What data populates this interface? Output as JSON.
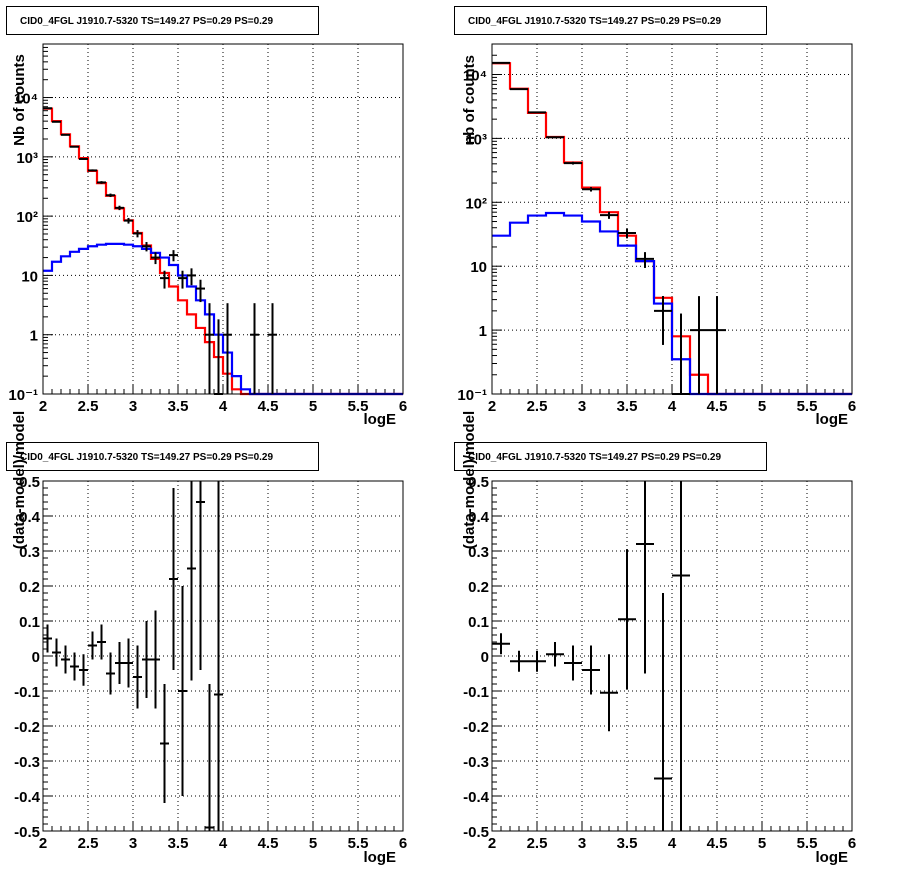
{
  "chart_data": [
    {
      "type": "histogram",
      "title": "CID0_4FGL J1910.7-5320 TS=149.27 PS=0.29 PS=0.29",
      "xlabel": "logE",
      "ylabel": "Nb of counts",
      "xlim": [
        2,
        6
      ],
      "ylim": [
        0.1,
        80000
      ],
      "yscale": "log",
      "grid": true,
      "x_ticks": [
        "2",
        "2.5",
        "3",
        "3.5",
        "4",
        "4.5",
        "5",
        "5.5",
        "6"
      ],
      "y_ticks": [
        "10⁻¹",
        "1",
        "10",
        "10²",
        "10³",
        "10⁴"
      ],
      "bin_edges": [
        2.0,
        2.1,
        2.2,
        2.3,
        2.4,
        2.5,
        2.6,
        2.7,
        2.8,
        2.9,
        3.0,
        3.1,
        3.2,
        3.3,
        3.4,
        3.5,
        3.6,
        3.7,
        3.8,
        3.9,
        4.0,
        4.1,
        4.2,
        4.3,
        4.4,
        4.5,
        4.6,
        4.7,
        4.8,
        4.9,
        5.0,
        5.1,
        5.2,
        5.3,
        5.4,
        5.5,
        5.6,
        5.7,
        5.8,
        5.9,
        6.0
      ],
      "series": [
        {
          "color": "#ff0000",
          "values": [
            6500,
            4000,
            2400,
            1500,
            950,
            580,
            360,
            220,
            135,
            85,
            52,
            32,
            19,
            11,
            6.5,
            3.8,
            2.2,
            1.3,
            0.75,
            0.42,
            0.22,
            0.12,
            0.1,
            0.1,
            0.1,
            0.1,
            0.1,
            0.1,
            0.1,
            0.1,
            0.1,
            0.1,
            0.1,
            0.1,
            0.1,
            0.1,
            0.1,
            0.1,
            0.1,
            0.1
          ]
        },
        {
          "color": "#0000ff",
          "values": [
            12,
            17,
            21,
            25,
            28,
            31,
            33,
            34,
            34,
            33,
            31,
            28,
            24,
            20,
            15,
            10,
            6.5,
            3.8,
            2.2,
            1.0,
            0.5,
            0.2,
            0.12,
            0.1,
            0.1,
            0.1,
            0.1,
            0.1,
            0.1,
            0.1,
            0.1,
            0.1,
            0.1,
            0.1,
            0.1,
            0.1,
            0.1,
            0.1,
            0.1,
            0.1
          ]
        }
      ],
      "data_points": [
        {
          "x": 2.05,
          "y": 6600
        },
        {
          "x": 2.15,
          "y": 3900
        },
        {
          "x": 2.25,
          "y": 2350
        },
        {
          "x": 2.35,
          "y": 1480
        },
        {
          "x": 2.45,
          "y": 920
        },
        {
          "x": 2.55,
          "y": 590
        },
        {
          "x": 2.65,
          "y": 370
        },
        {
          "x": 2.75,
          "y": 225
        },
        {
          "x": 2.85,
          "y": 138
        },
        {
          "x": 2.95,
          "y": 84
        },
        {
          "x": 3.05,
          "y": 51
        },
        {
          "x": 3.15,
          "y": 31
        },
        {
          "x": 3.25,
          "y": 20
        },
        {
          "x": 3.35,
          "y": 9
        },
        {
          "x": 3.45,
          "y": 22
        },
        {
          "x": 3.55,
          "y": 9
        },
        {
          "x": 3.65,
          "y": 10
        },
        {
          "x": 3.75,
          "y": 6
        },
        {
          "x": 3.85,
          "y": 1
        },
        {
          "x": 3.95,
          "y": 0.1
        },
        {
          "x": 4.05,
          "y": 1
        },
        {
          "x": 4.35,
          "y": 1
        },
        {
          "x": 4.55,
          "y": 1
        }
      ]
    },
    {
      "type": "histogram",
      "title": "CID0_4FGL J1910.7-5320 TS=149.27 PS=0.29 PS=0.29",
      "xlabel": "logE",
      "ylabel": "nb of counts",
      "xlim": [
        2,
        6
      ],
      "ylim": [
        0.1,
        30000
      ],
      "yscale": "log",
      "grid": true,
      "x_ticks": [
        "2",
        "2.5",
        "3",
        "3.5",
        "4",
        "4.5",
        "5",
        "5.5",
        "6"
      ],
      "y_ticks": [
        "10⁻¹",
        "1",
        "10",
        "10²",
        "10³",
        "10⁴"
      ],
      "bin_edges": [
        2.0,
        2.2,
        2.4,
        2.6,
        2.8,
        3.0,
        3.2,
        3.4,
        3.6,
        3.8,
        4.0,
        4.2,
        4.4,
        4.6,
        4.8,
        5.0,
        5.2,
        5.4,
        5.6,
        5.8,
        6.0
      ],
      "series": [
        {
          "color": "#ff0000",
          "values": [
            15000,
            6000,
            2500,
            1050,
            420,
            170,
            70,
            30,
            12,
            3.2,
            0.8,
            0.2,
            0.1,
            0.1,
            0.1,
            0.1,
            0.1,
            0.1,
            0.1,
            0.1
          ]
        },
        {
          "color": "#0000ff",
          "values": [
            30,
            48,
            62,
            68,
            62,
            50,
            35,
            21,
            12,
            2.6,
            0.35,
            0.1,
            0.1,
            0.1,
            0.1,
            0.1,
            0.1,
            0.1,
            0.1,
            0.1
          ]
        }
      ],
      "data_points": [
        {
          "x": 2.1,
          "y": 15200
        },
        {
          "x": 2.3,
          "y": 5900
        },
        {
          "x": 2.5,
          "y": 2550
        },
        {
          "x": 2.7,
          "y": 1040
        },
        {
          "x": 2.9,
          "y": 410
        },
        {
          "x": 3.1,
          "y": 160
        },
        {
          "x": 3.3,
          "y": 63
        },
        {
          "x": 3.5,
          "y": 33
        },
        {
          "x": 3.7,
          "y": 13
        },
        {
          "x": 3.9,
          "y": 2
        },
        {
          "x": 4.1,
          "y": 0.1
        },
        {
          "x": 4.3,
          "y": 1
        },
        {
          "x": 4.5,
          "y": 1
        }
      ]
    },
    {
      "type": "scatter",
      "title": "CID0_4FGL J1910.7-5320 TS=149.27 PS=0.29 PS=0.29",
      "xlabel": "logE",
      "ylabel": "(data-model)/model",
      "xlim": [
        2,
        6
      ],
      "ylim": [
        -0.5,
        0.5
      ],
      "grid": true,
      "x_ticks": [
        "2",
        "2.5",
        "3",
        "3.5",
        "4",
        "4.5",
        "5",
        "5.5",
        "6"
      ],
      "y_ticks": [
        "-0.5",
        "-0.4",
        "-0.3",
        "-0.2",
        "-0.1",
        "0",
        "0.1",
        "0.2",
        "0.3",
        "0.4",
        "0.5"
      ],
      "points": [
        {
          "x": 2.05,
          "y": 0.05,
          "err": 0.04
        },
        {
          "x": 2.15,
          "y": 0.01,
          "err": 0.04
        },
        {
          "x": 2.25,
          "y": -0.01,
          "err": 0.04
        },
        {
          "x": 2.35,
          "y": -0.03,
          "err": 0.04
        },
        {
          "x": 2.45,
          "y": -0.04,
          "err": 0.045
        },
        {
          "x": 2.55,
          "y": 0.03,
          "err": 0.04
        },
        {
          "x": 2.65,
          "y": 0.04,
          "err": 0.05
        },
        {
          "x": 2.75,
          "y": -0.05,
          "err": 0.06
        },
        {
          "x": 2.85,
          "y": -0.02,
          "err": 0.06
        },
        {
          "x": 2.95,
          "y": -0.02,
          "err": 0.07
        },
        {
          "x": 3.05,
          "y": -0.06,
          "err": 0.09
        },
        {
          "x": 3.15,
          "y": -0.01,
          "err": 0.11
        },
        {
          "x": 3.25,
          "y": -0.01,
          "err": 0.14
        },
        {
          "x": 3.35,
          "y": -0.25,
          "err": 0.17
        },
        {
          "x": 3.45,
          "y": 0.22,
          "err": 0.26
        },
        {
          "x": 3.55,
          "y": -0.1,
          "err": 0.3
        },
        {
          "x": 3.65,
          "y": 0.25,
          "err": 0.32
        },
        {
          "x": 3.75,
          "y": 0.44,
          "err": 0.48
        },
        {
          "x": 3.85,
          "y": -0.49,
          "err": 0.41
        },
        {
          "x": 3.95,
          "y": -0.11,
          "err": 0.8
        }
      ]
    },
    {
      "type": "scatter",
      "title": "CID0_4FGL J1910.7-5320 TS=149.27 PS=0.29 PS=0.29",
      "xlabel": "logE",
      "ylabel": "(data-model)/model",
      "xlim": [
        2,
        6
      ],
      "ylim": [
        -0.5,
        0.5
      ],
      "grid": true,
      "x_ticks": [
        "2",
        "2.5",
        "3",
        "3.5",
        "4",
        "4.5",
        "5",
        "5.5",
        "6"
      ],
      "y_ticks": [
        "-0.5",
        "-0.4",
        "-0.3",
        "-0.2",
        "-0.1",
        "0",
        "0.1",
        "0.2",
        "0.3",
        "0.4",
        "0.5"
      ],
      "points": [
        {
          "x": 2.1,
          "y": 0.035,
          "err": 0.03
        },
        {
          "x": 2.3,
          "y": -0.015,
          "err": 0.03
        },
        {
          "x": 2.5,
          "y": -0.015,
          "err": 0.03
        },
        {
          "x": 2.7,
          "y": 0.005,
          "err": 0.035
        },
        {
          "x": 2.9,
          "y": -0.02,
          "err": 0.05
        },
        {
          "x": 3.1,
          "y": -0.04,
          "err": 0.07
        },
        {
          "x": 3.3,
          "y": -0.105,
          "err": 0.11
        },
        {
          "x": 3.5,
          "y": 0.105,
          "err": 0.2
        },
        {
          "x": 3.7,
          "y": 0.32,
          "err": 0.37
        },
        {
          "x": 3.9,
          "y": -0.35,
          "err": 0.53
        },
        {
          "x": 4.1,
          "y": 0.23,
          "err": 0.8
        }
      ]
    }
  ]
}
